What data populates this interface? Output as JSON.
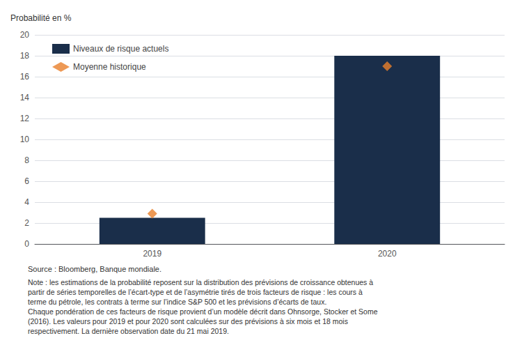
{
  "chart_data": {
    "type": "bar",
    "ylabel": "Probabilité en %",
    "categories": [
      "2019",
      "2020"
    ],
    "series": [
      {
        "name": "Niveaux de risque actuels",
        "type": "bar",
        "color": "#1a2e4a",
        "values": [
          2.5,
          18.0
        ]
      },
      {
        "name": "Moyenne historique",
        "type": "scatter",
        "marker": "diamond",
        "color": "#e87f2a",
        "values": [
          2.9,
          17.0
        ]
      }
    ],
    "ylim": [
      0,
      20
    ],
    "yticks": [
      0,
      2,
      4,
      6,
      8,
      10,
      12,
      14,
      16,
      18,
      20
    ],
    "grid": true,
    "legend": "upper left",
    "annotations": [
      "Source : Bloomberg, Banque mondiale.",
      "Note : les estimations de la probabilité reposent sur la distribution des prévisions de croissance obtenues à\npartir de séries temporelles de l’écart-type et de l’asymétrie tirés de trois facteurs de risque : les cours à\nterme du pétrole, les contrats à terme sur l’indice S&P 500 et les prévisions d’écarts de taux.\nChaque pondération de ces facteurs de risque provient d’un modèle décrit dans Ohnsorge, Stocker et Some\n(2016). Les valeurs pour 2019 et pour 2020 sont calculées sur des prévisions à six mois et 18 mois\nrespectivement. La dernière observation date du 21 mai 2019."
    ]
  }
}
